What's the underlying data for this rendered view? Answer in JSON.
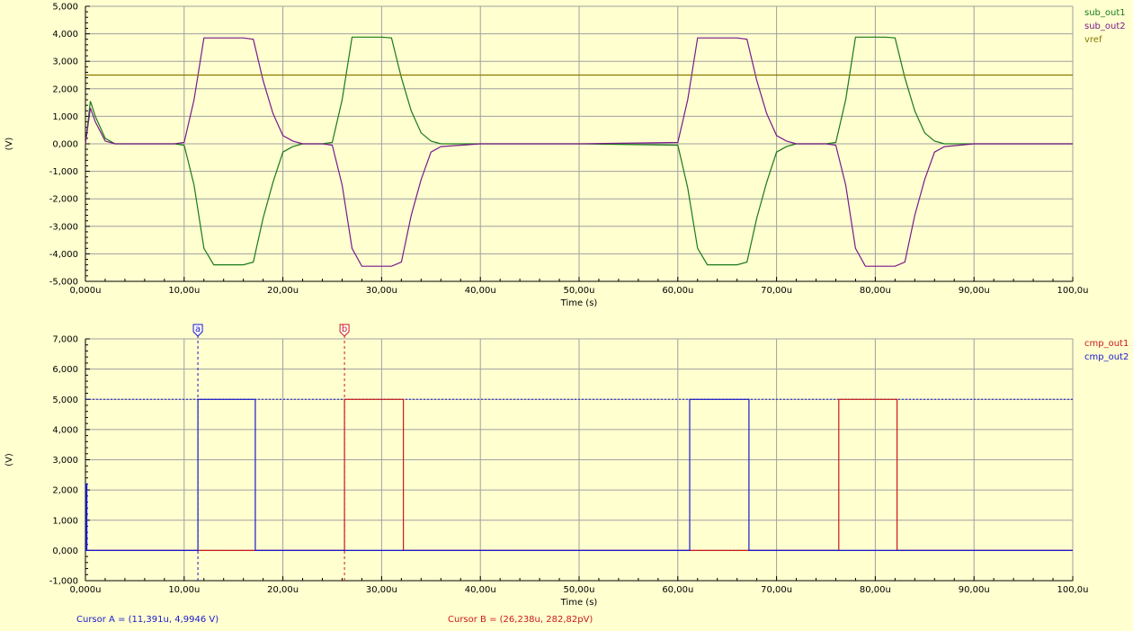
{
  "chart_data": [
    {
      "type": "line",
      "ylabel": "(V)",
      "xlabel": "Time (s)",
      "xlim": [
        0,
        100
      ],
      "ylim": [
        -5,
        5
      ],
      "x_ticks": [
        "0,000u",
        "10,00u",
        "20,00u",
        "30,00u",
        "40,00u",
        "50,00u",
        "60,00u",
        "70,00u",
        "80,00u",
        "90,00u",
        "100,0u"
      ],
      "y_ticks": [
        "5,000",
        "4,000",
        "3,000",
        "2,000",
        "1,000",
        "0,000",
        "-1,000",
        "-2,000",
        "-3,000",
        "-4,000",
        "-5,000"
      ],
      "grid": true,
      "legend_placement": "right",
      "series": [
        {
          "name": "sub_out1",
          "color": "#1a7a1a",
          "x": [
            0,
            0.5,
            1,
            2,
            3,
            4,
            5,
            6,
            7,
            8,
            9,
            10,
            11,
            12,
            13,
            14,
            15,
            16,
            17,
            18,
            19,
            20,
            21,
            22,
            23,
            24,
            25,
            26,
            27,
            28,
            29,
            30,
            31,
            32,
            33,
            34,
            35,
            36,
            40,
            50,
            60,
            61,
            62,
            63,
            64,
            65,
            66,
            67,
            68,
            69,
            70,
            71,
            72,
            73,
            74,
            75,
            76,
            77,
            78,
            79,
            80,
            81,
            82,
            83,
            84,
            85,
            86,
            87,
            90,
            100
          ],
          "y": [
            0,
            1.55,
            1,
            0.2,
            0,
            0,
            0,
            0,
            0,
            0,
            0,
            -0.05,
            -1.5,
            -3.8,
            -4.4,
            -4.4,
            -4.4,
            -4.4,
            -4.3,
            -2.7,
            -1.4,
            -0.3,
            -0.1,
            0,
            0,
            0,
            0.05,
            1.6,
            3.88,
            3.88,
            3.88,
            3.88,
            3.85,
            2.4,
            1.2,
            0.4,
            0.1,
            0,
            0,
            0,
            -0.05,
            -1.6,
            -3.8,
            -4.4,
            -4.4,
            -4.4,
            -4.4,
            -4.3,
            -2.7,
            -1.4,
            -0.3,
            -0.1,
            0,
            0,
            0,
            0,
            0.05,
            1.6,
            3.88,
            3.88,
            3.88,
            3.88,
            3.85,
            2.4,
            1.2,
            0.4,
            0.1,
            0,
            0,
            0
          ]
        },
        {
          "name": "sub_out2",
          "color": "#7a1a8c",
          "x": [
            0,
            0.5,
            1,
            2,
            3,
            4,
            5,
            6,
            7,
            8,
            9,
            10,
            11,
            12,
            13,
            14,
            15,
            16,
            17,
            18,
            19,
            20,
            21,
            22,
            23,
            24,
            25,
            26,
            27,
            28,
            29,
            30,
            31,
            32,
            33,
            34,
            35,
            36,
            40,
            50,
            60,
            61,
            62,
            63,
            64,
            65,
            66,
            67,
            68,
            69,
            70,
            71,
            72,
            73,
            74,
            75,
            76,
            77,
            78,
            79,
            80,
            81,
            82,
            83,
            84,
            85,
            86,
            87,
            90,
            100
          ],
          "y": [
            0,
            1.3,
            0.8,
            0.1,
            0,
            0,
            0,
            0,
            0,
            0,
            0,
            0.05,
            1.6,
            3.85,
            3.85,
            3.85,
            3.85,
            3.85,
            3.8,
            2.3,
            1.1,
            0.3,
            0.1,
            0,
            0,
            0,
            -0.05,
            -1.5,
            -3.8,
            -4.45,
            -4.45,
            -4.45,
            -4.45,
            -4.3,
            -2.6,
            -1.3,
            -0.3,
            -0.1,
            0,
            0,
            0.05,
            1.6,
            3.85,
            3.85,
            3.85,
            3.85,
            3.85,
            3.8,
            2.3,
            1.1,
            0.3,
            0.1,
            0,
            0,
            0,
            0,
            -0.05,
            -1.5,
            -3.8,
            -4.45,
            -4.45,
            -4.45,
            -4.45,
            -4.3,
            -2.6,
            -1.3,
            -0.3,
            -0.1,
            0,
            0
          ]
        },
        {
          "name": "vref",
          "color": "#8a7a00",
          "x": [
            0,
            100
          ],
          "y": [
            2.5,
            2.5
          ]
        }
      ]
    },
    {
      "type": "line",
      "ylabel": "(V)",
      "xlabel": "Time (s)",
      "xlim": [
        0,
        100
      ],
      "ylim": [
        -1,
        7
      ],
      "x_ticks": [
        "0,000u",
        "10,00u",
        "20,00u",
        "30,00u",
        "40,00u",
        "50,00u",
        "60,00u",
        "70,00u",
        "80,00u",
        "90,00u",
        "100,0u"
      ],
      "y_ticks": [
        "7,000",
        "6,000",
        "5,000",
        "4,000",
        "3,000",
        "2,000",
        "1,000",
        "0,000",
        "-1,000"
      ],
      "grid": true,
      "legend_placement": "right",
      "series": [
        {
          "name": "cmp_out1",
          "color": "#cc1a1a",
          "x": [
            0,
            26.24,
            26.24,
            32.2,
            32.2,
            76.3,
            76.3,
            82.2,
            82.2,
            100
          ],
          "y": [
            0,
            0,
            5,
            5,
            0,
            0,
            5,
            5,
            0,
            0
          ]
        },
        {
          "name": "cmp_out2",
          "color": "#1a1acc",
          "x": [
            0,
            0.05,
            0.05,
            0.15,
            0.15,
            11.39,
            11.39,
            17.2,
            17.2,
            61.2,
            61.2,
            67.2,
            67.2,
            100
          ],
          "y": [
            0,
            0,
            2.2,
            2.2,
            0,
            0,
            5,
            5,
            0,
            0,
            5,
            5,
            0,
            0
          ]
        }
      ],
      "cursors": [
        {
          "label": "a",
          "x": 11.391,
          "color": "#1a1acc"
        },
        {
          "label": "b",
          "x": 26.238,
          "color": "#cc1a1a"
        }
      ],
      "reference_lines": [
        5,
        0
      ]
    }
  ],
  "cursor_readout": {
    "a_text": "Cursor A = (11,391u, 4,9946 V)",
    "b_text": "Cursor B = (26,238u, 282,82pV)",
    "a_color": "#1a1acc",
    "b_color": "#cc1a1a"
  }
}
